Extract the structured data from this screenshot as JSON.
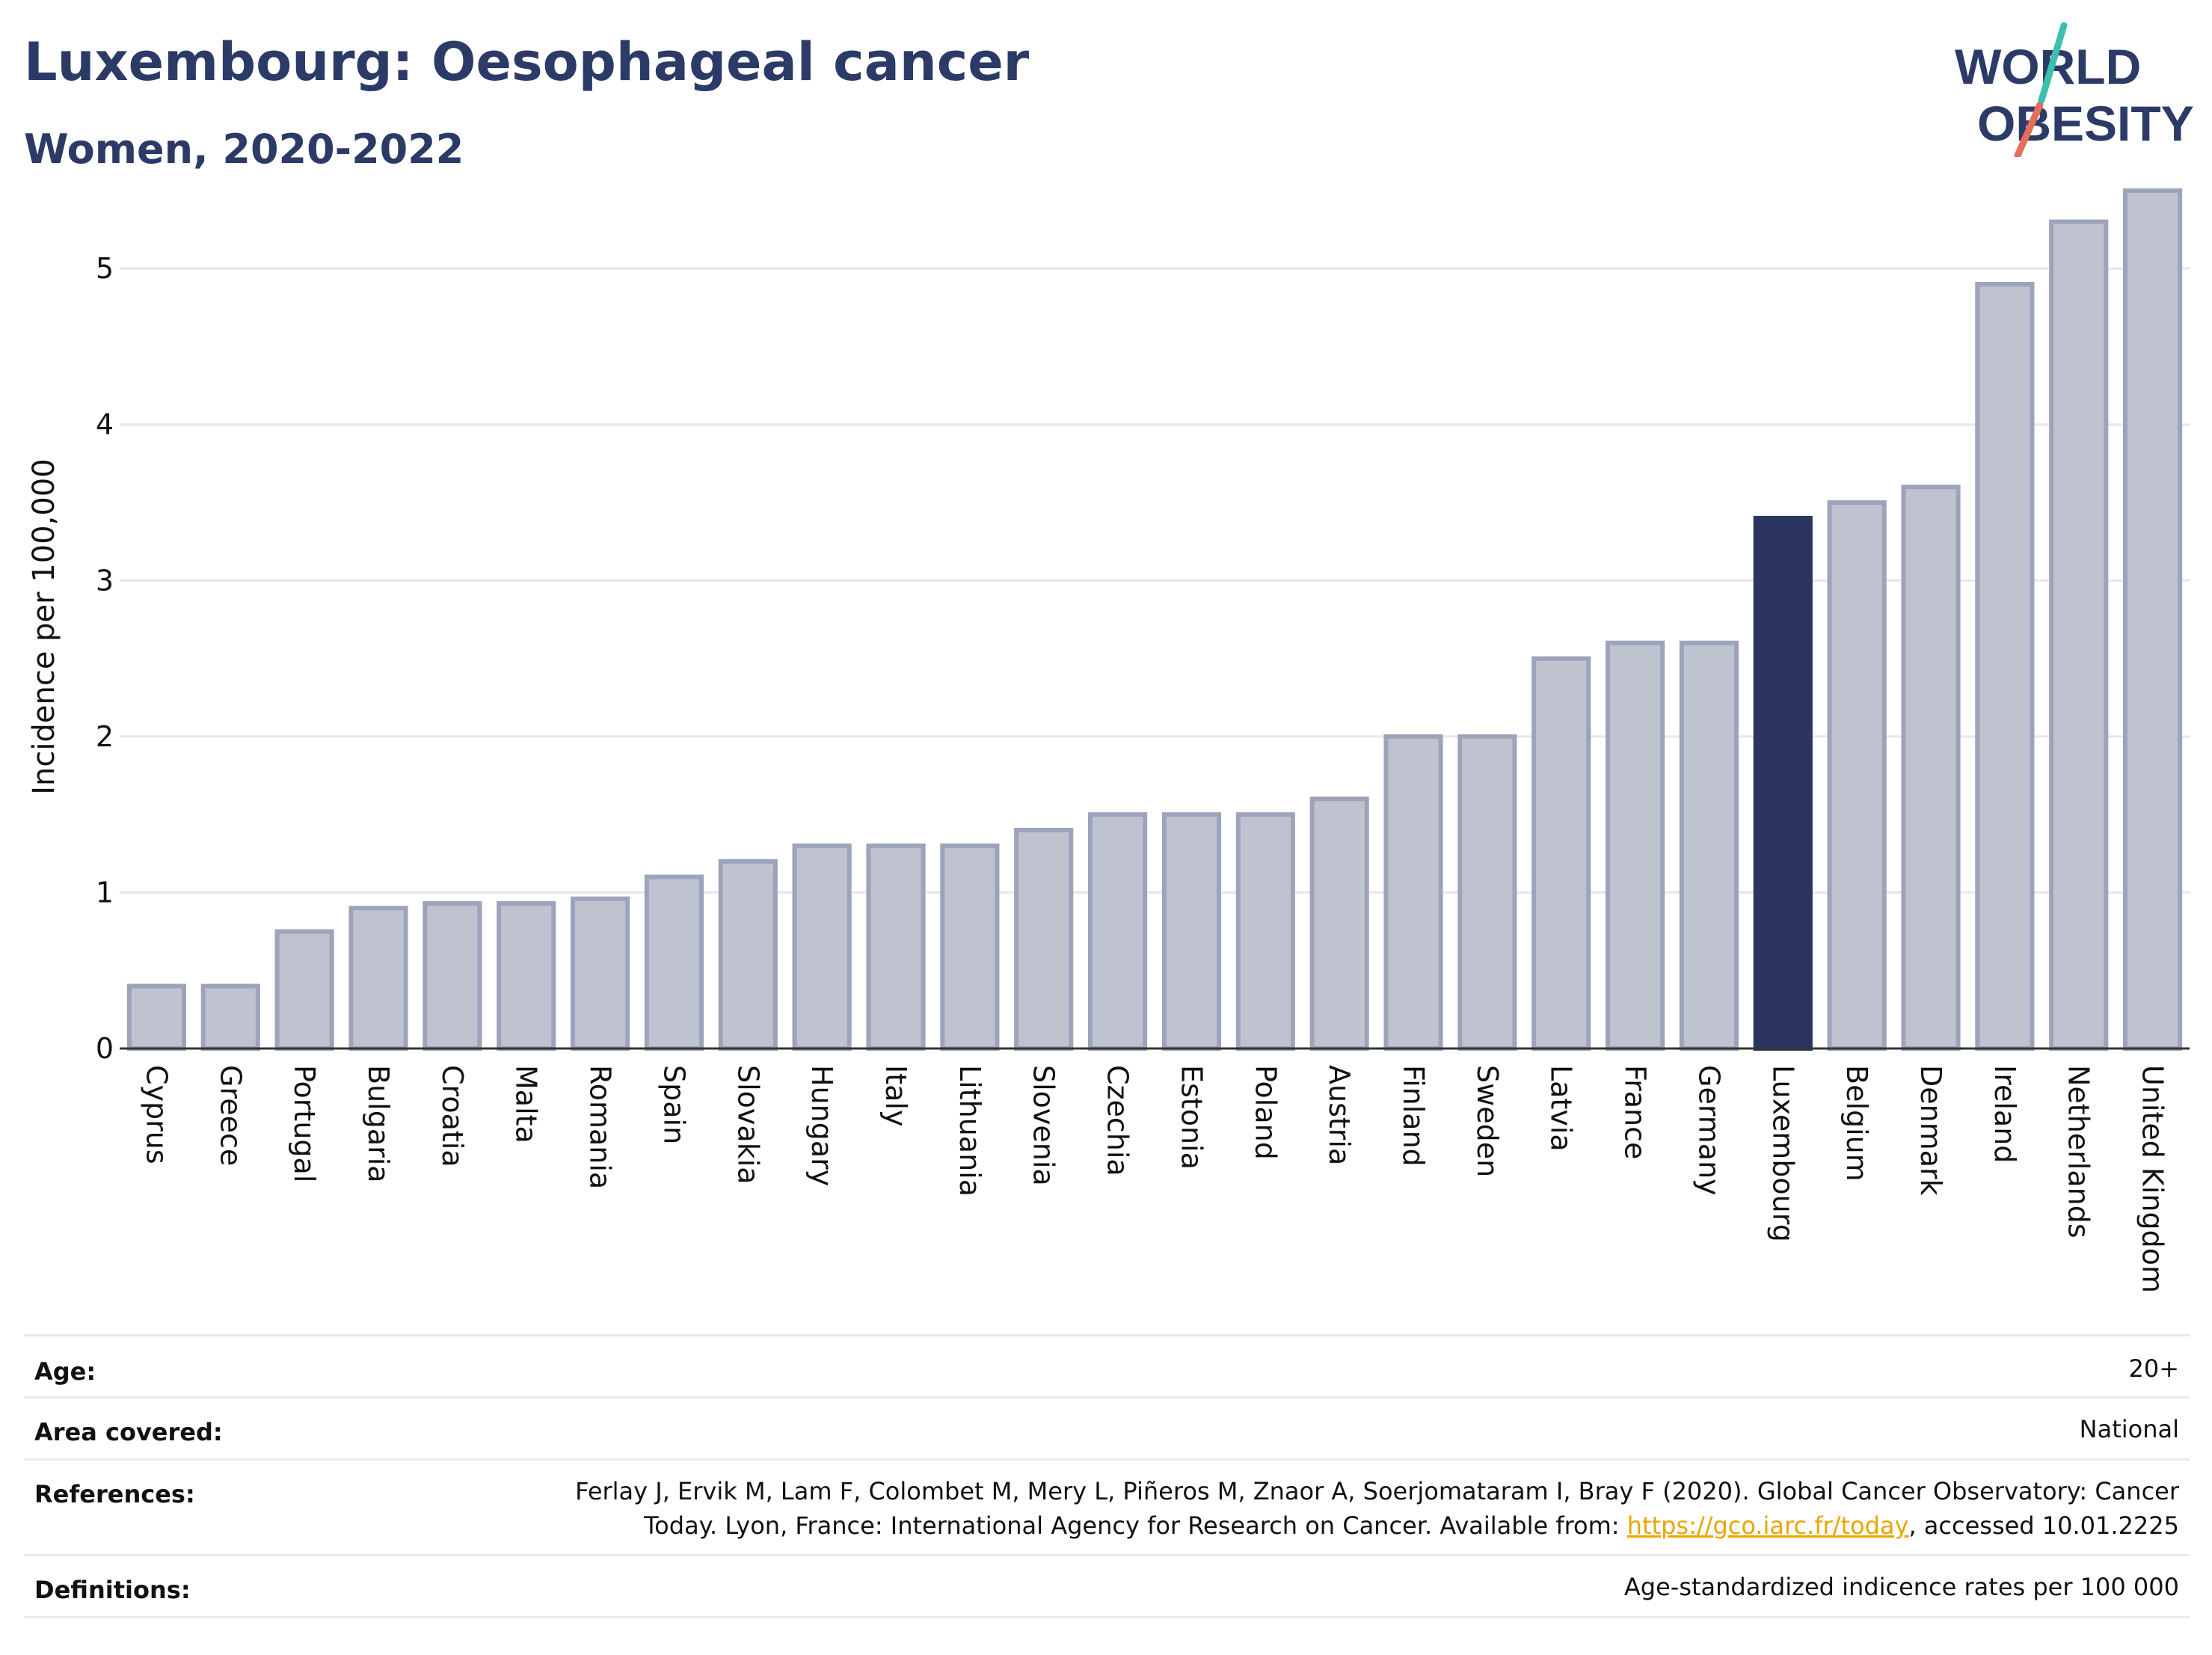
{
  "header": {
    "title": "Luxembourg: Oesophageal cancer",
    "subtitle": "Women, 2020-2022"
  },
  "logo": {
    "line1": "WORLD",
    "line2": "OBESITY"
  },
  "chart_data": {
    "type": "bar",
    "title": "Luxembourg: Oesophageal cancer",
    "subtitle": "Women, 2020-2022",
    "ylabel": "Incidence per 100,000",
    "xlabel": "",
    "ylim": [
      0,
      5.6
    ],
    "yticks": [
      0,
      1,
      2,
      3,
      4,
      5
    ],
    "grid": true,
    "highlight": "Luxembourg",
    "colors": {
      "bar": "#bfc3d0",
      "bar_border": "#9da3ba",
      "highlight": "#2b3560",
      "grid": "#e5e7ec",
      "axis": "#333333"
    },
    "categories": [
      "Cyprus",
      "Greece",
      "Portugal",
      "Bulgaria",
      "Croatia",
      "Malta",
      "Romania",
      "Spain",
      "Slovakia",
      "Hungary",
      "Italy",
      "Lithuania",
      "Slovenia",
      "Czechia",
      "Estonia",
      "Poland",
      "Austria",
      "Finland",
      "Sweden",
      "Latvia",
      "France",
      "Germany",
      "Luxembourg",
      "Belgium",
      "Denmark",
      "Ireland",
      "Netherlands",
      "United Kingdom"
    ],
    "values": [
      0.4,
      0.4,
      0.75,
      0.9,
      0.93,
      0.93,
      0.96,
      1.1,
      1.2,
      1.3,
      1.3,
      1.3,
      1.4,
      1.5,
      1.5,
      1.5,
      1.6,
      2.0,
      2.0,
      2.5,
      2.6,
      2.6,
      3.4,
      3.5,
      3.6,
      4.9,
      5.3,
      5.5
    ]
  },
  "info": {
    "age_label": "Age:",
    "age_value": "20+",
    "area_label": "Area covered:",
    "area_value": "National",
    "references_label": "References:",
    "references_text_1": "Ferlay J, Ervik M, Lam F, Colombet M, Mery L, Piñeros M, Znaor A, Soerjomataram I, Bray F (2020). Global Cancer Observatory: Cancer",
    "references_text_2": "Today. Lyon, France: International Agency for Research on Cancer. Available from: ",
    "references_link": "https://gco.iarc.fr/today",
    "references_text_3": ", accessed 10.01.2225",
    "definitions_label": "Definitions:",
    "definitions_value": "Age-standardized indicence rates per 100 000"
  }
}
